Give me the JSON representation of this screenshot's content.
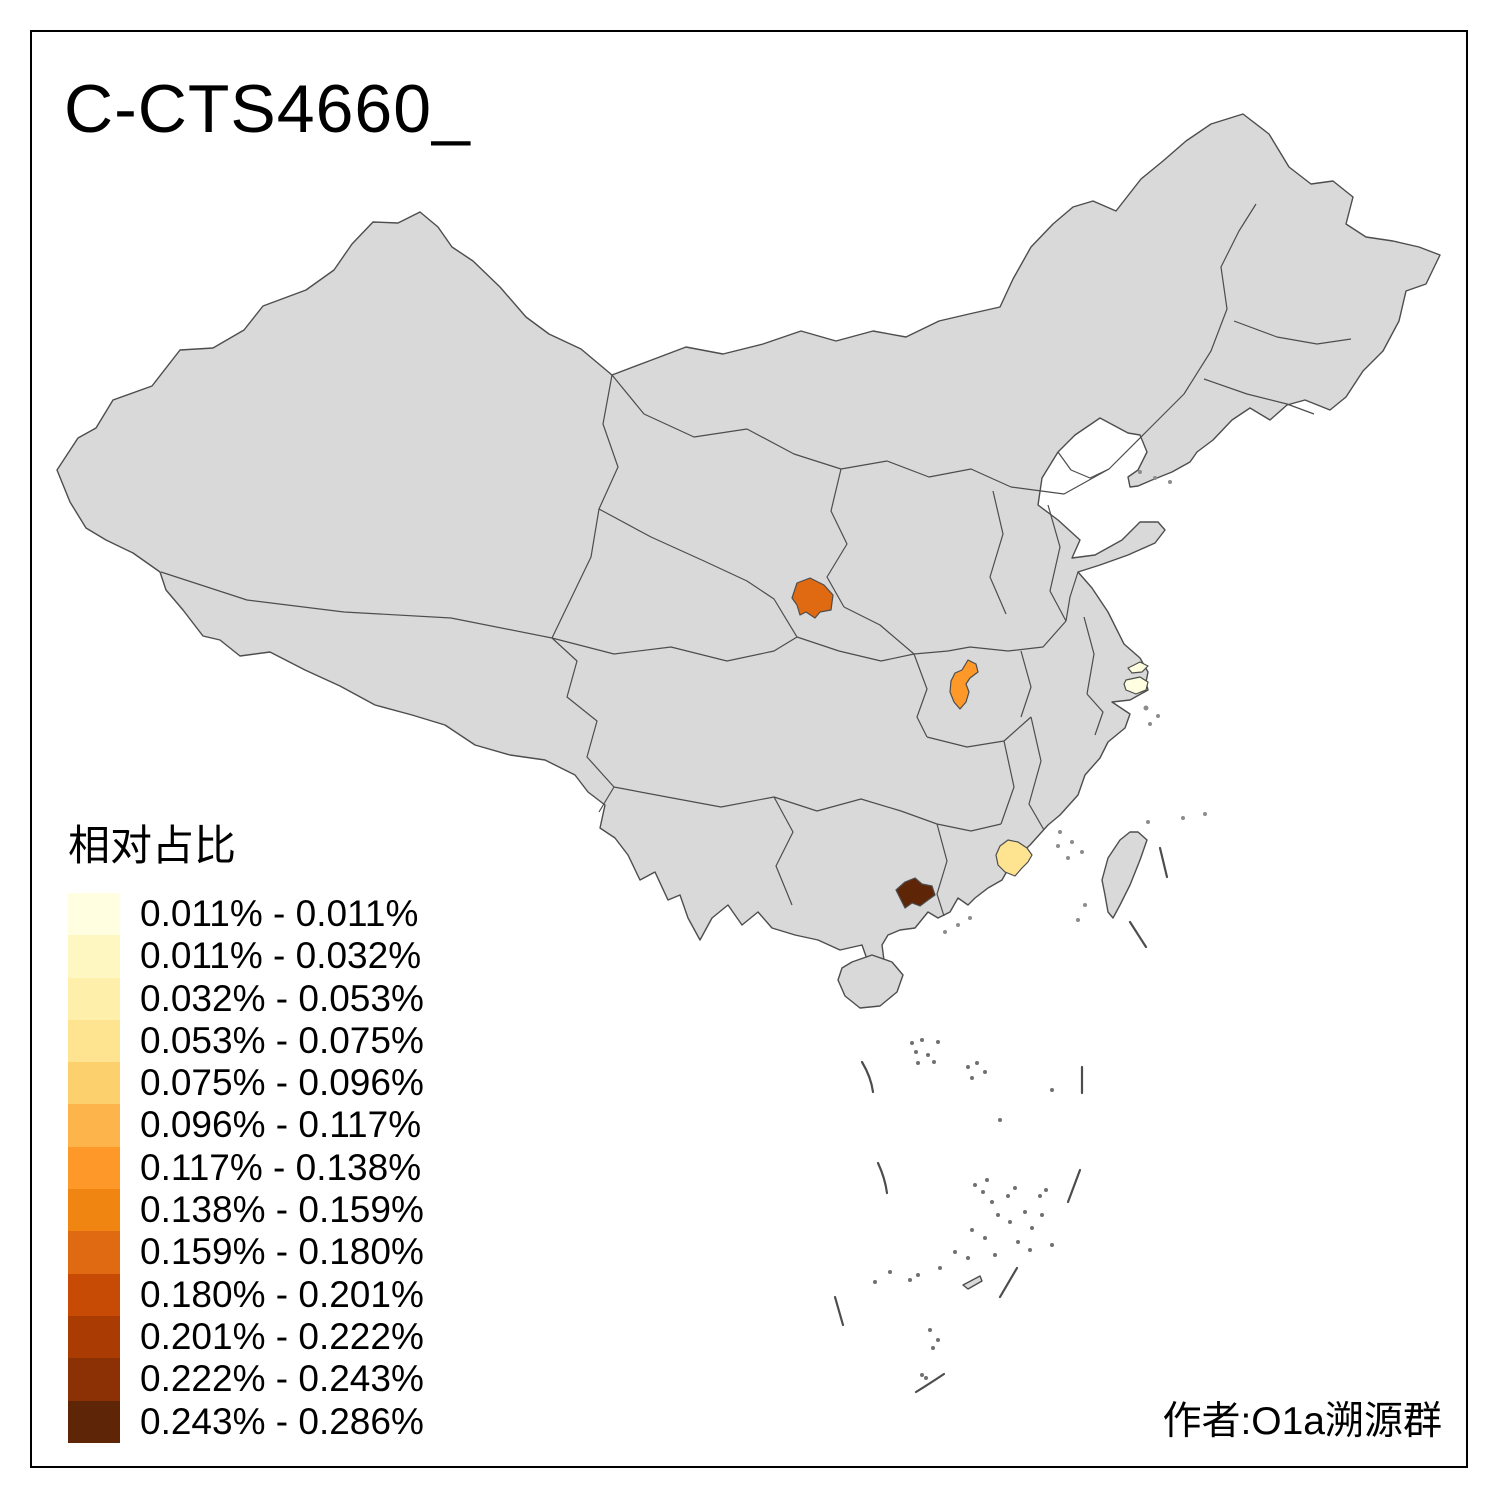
{
  "title": "C-CTS4660_",
  "attribution": "作者:O1a溯源群",
  "legend": {
    "title": "相对占比",
    "items": [
      {
        "label": "0.011% - 0.011%",
        "color": "#FFFEE0"
      },
      {
        "label": "0.011% - 0.032%",
        "color": "#FFF7C2"
      },
      {
        "label": "0.032% - 0.053%",
        "color": "#FEEFAB"
      },
      {
        "label": "0.053% - 0.075%",
        "color": "#FEE391"
      },
      {
        "label": "0.075% - 0.096%",
        "color": "#FDD06E"
      },
      {
        "label": "0.096% - 0.117%",
        "color": "#FDB44A"
      },
      {
        "label": "0.117% - 0.138%",
        "color": "#FD9829"
      },
      {
        "label": "0.138% - 0.159%",
        "color": "#F08511"
      },
      {
        "label": "0.159% - 0.180%",
        "color": "#E06A12"
      },
      {
        "label": "0.180% - 0.201%",
        "color": "#C74B04"
      },
      {
        "label": "0.201% - 0.222%",
        "color": "#AA3B03"
      },
      {
        "label": "0.222% - 0.243%",
        "color": "#8C3006"
      },
      {
        "label": "0.243% - 0.286%",
        "color": "#5E2507"
      }
    ]
  },
  "map": {
    "land_fill": "#D9D9D9",
    "border_color": "#4D4D4D",
    "frame_color": "#000000",
    "regions": [
      {
        "id": "region-1",
        "legend_bin": "0.159% - 0.180%",
        "color": "#E06A12"
      },
      {
        "id": "region-2",
        "legend_bin": "0.117% - 0.138%",
        "color": "#FD9829"
      },
      {
        "id": "region-3",
        "legend_bin": "0.053% - 0.075%",
        "color": "#FEE391"
      },
      {
        "id": "region-4",
        "legend_bin": "0.011% - 0.011%",
        "color": "#FFFEE0"
      },
      {
        "id": "region-5",
        "legend_bin": "0.243% - 0.286%",
        "color": "#5E2507"
      }
    ]
  }
}
